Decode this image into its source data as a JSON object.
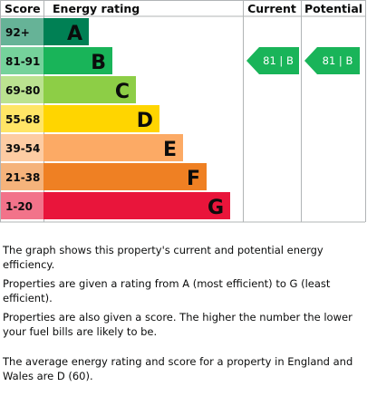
{
  "header": {
    "score": "Score",
    "rating": "Energy rating",
    "current": "Current",
    "potential": "Potential"
  },
  "bands": [
    {
      "score": "92+",
      "band": "A",
      "color": "#008054",
      "light": "#66b397"
    },
    {
      "score": "81-91",
      "band": "B",
      "color": "#19b459",
      "light": "#75d29b"
    },
    {
      "score": "69-80",
      "band": "C",
      "color": "#8dce46",
      "light": "#bbe290"
    },
    {
      "score": "55-68",
      "band": "D",
      "color": "#ffd500",
      "light": "#ffe566"
    },
    {
      "score": "39-54",
      "band": "E",
      "color": "#fcaa65",
      "light": "#fdcca3"
    },
    {
      "score": "21-38",
      "band": "F",
      "color": "#ef8023",
      "light": "#f5b37b"
    },
    {
      "score": "1-20",
      "band": "G",
      "color": "#e9153b",
      "light": "#f2738a"
    }
  ],
  "current": {
    "label": "81 | B",
    "band_index": 1
  },
  "potential": {
    "label": "81 | B",
    "band_index": 1
  },
  "paragraphs": [
    "The graph shows this property's current and potential energy efficiency.",
    "Properties are given a rating from A (most efficient) to G (least efficient).",
    "Properties are also given a score. The higher the number the lower your fuel bills are likely to be.",
    "The average energy rating and score for a property in England and Wales are D (60)."
  ]
}
